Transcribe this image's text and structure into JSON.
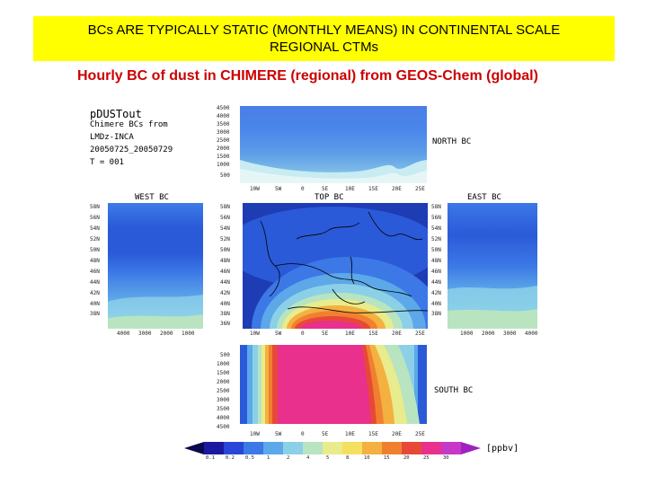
{
  "slide": {
    "banner_text": "BCs ARE TYPICALLY STATIC (MONTHLY MEANS) IN CONTINENTAL SCALE REGIONAL CTMs",
    "subtitle": "Hourly BC of dust in CHIMERE (regional) from GEOS-Chem (global)"
  },
  "figure": {
    "info": {
      "line1": "pDUSTout",
      "line2": "Chimere BCs from",
      "line3": "LMDz-INCA",
      "line4": "20050725_20050729",
      "line5": "T = 001"
    },
    "north_label": "NORTH BC",
    "west_label": "WEST BC",
    "top_label": "TOP BC",
    "east_label": "EAST BC",
    "south_label": "SOUTH BC",
    "units": "[ppbv]",
    "pressure_ticks": [
      "4500",
      "4000",
      "3500",
      "3000",
      "2500",
      "2000",
      "1500",
      "1000",
      "500"
    ],
    "south_pressure_ticks": [
      "500",
      "1000",
      "1500",
      "2000",
      "2500",
      "3000",
      "3500",
      "4000",
      "4500"
    ],
    "lon_ticks": [
      "10W",
      "5W",
      "0",
      "5E",
      "10E",
      "15E",
      "20E",
      "25E"
    ],
    "lat_ticks": [
      "58N",
      "56N",
      "54N",
      "52N",
      "50N",
      "48N",
      "46N",
      "44N",
      "42N",
      "40N",
      "38N",
      "36N"
    ],
    "west_x_ticks": [
      "4000",
      "3000",
      "2000",
      "1000"
    ],
    "east_x_ticks": [
      "1000",
      "2000",
      "3000",
      "4000"
    ],
    "colorbar_labels": [
      "0.1",
      "0.2",
      "0.5",
      "1",
      "2",
      "4",
      "5",
      "8",
      "10",
      "15",
      "20",
      "25",
      "30"
    ],
    "colorbar_colors": [
      "#1a1aa0",
      "#2846d8",
      "#3c78e6",
      "#5ca8e8",
      "#8cd0e8",
      "#b8e4c0",
      "#e8ec8c",
      "#f4e060",
      "#f4b040",
      "#f08030",
      "#e84838",
      "#e8308c",
      "#c838c8"
    ]
  },
  "colors": {
    "banner": "#ffff00",
    "subtitle": "#cc0000",
    "dust_low": "#2850d8",
    "dust_high": "#e0309a"
  }
}
